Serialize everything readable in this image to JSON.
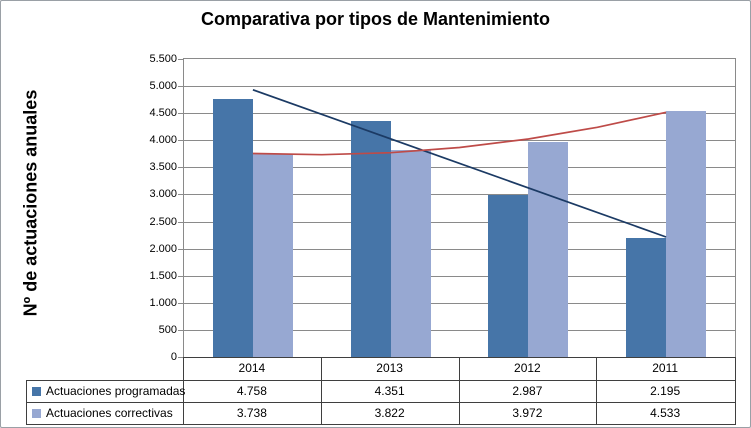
{
  "chart_data": {
    "type": "bar",
    "title": "Comparativa por tipos de Mantenimiento",
    "ylabel": "Nº de actuaciones anuales",
    "xlabel": "",
    "categories": [
      "2014",
      "2013",
      "2012",
      "2011"
    ],
    "series": [
      {
        "name": "Actuaciones programadas",
        "color": "#4675A8",
        "values": [
          4758,
          4351,
          2987,
          2195
        ],
        "value_labels": [
          "4.758",
          "4.351",
          "2.987",
          "2.195"
        ]
      },
      {
        "name": "Actuaciones correctivas",
        "color": "#97A8D2",
        "values": [
          3738,
          3822,
          3972,
          4533
        ],
        "value_labels": [
          "3.738",
          "3.822",
          "3.972",
          "4.533"
        ]
      }
    ],
    "trendlines": [
      {
        "for_series": "Actuaciones programadas",
        "shape": "linear-descending",
        "color": "#1B3A64",
        "x": [
          1,
          4
        ],
        "y": [
          4931,
          2215
        ]
      },
      {
        "for_series": "Actuaciones correctivas",
        "shape": "curved-rising",
        "color": "#BE4B48",
        "x": [
          1,
          1.5,
          2,
          2.5,
          3,
          3.5,
          4
        ],
        "y": [
          3755,
          3733,
          3770,
          3867,
          4024,
          4240,
          4516
        ]
      }
    ],
    "ylim": [
      0,
      5500
    ],
    "ytick_step": 500,
    "ytick_labels": [
      "0",
      "500",
      "1.000",
      "1.500",
      "2.000",
      "2.500",
      "3.000",
      "3.500",
      "4.000",
      "4.500",
      "5.000",
      "5.500"
    ],
    "grid": true,
    "legend_position": "table-left",
    "colors": {
      "grid": "#8A8A8A",
      "axis": "#8A8A8A",
      "table_border": "#3F3F3F",
      "text": "#000000",
      "frame_border": "#9AA0A6",
      "background": "#FFFFFF"
    }
  }
}
